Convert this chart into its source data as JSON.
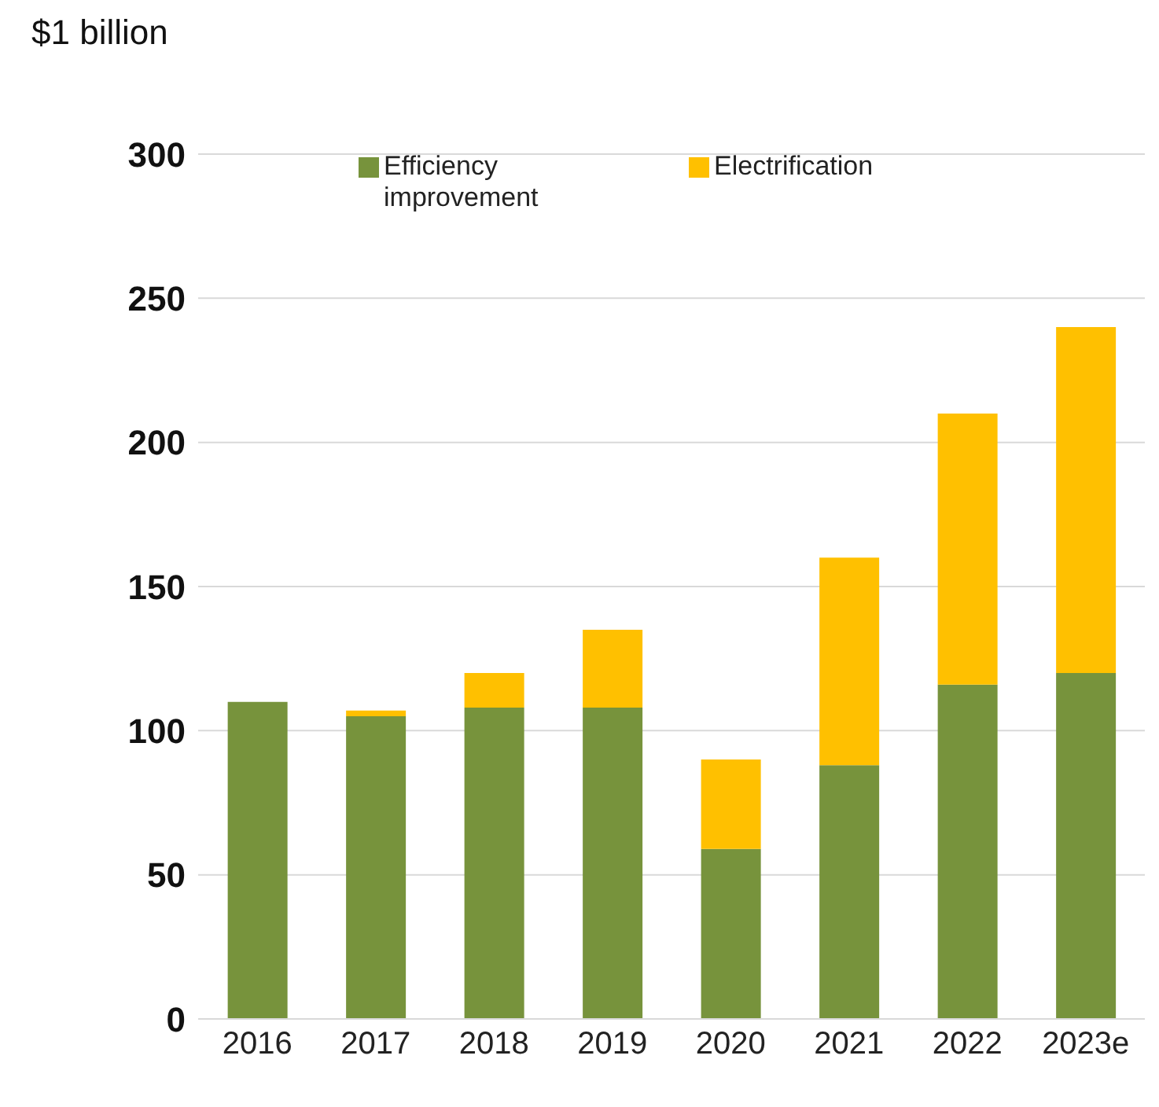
{
  "chart_data": {
    "type": "bar",
    "ylabel": "$1 billion",
    "stacked": true,
    "categories": [
      "2016",
      "2017",
      "2018",
      "2019",
      "2020",
      "2021",
      "2022",
      "2023e"
    ],
    "series": [
      {
        "name": "Efficiency improvement",
        "color": "#77933c",
        "values": [
          110,
          105,
          108,
          108,
          59,
          88,
          116,
          120
        ]
      },
      {
        "name": "Electrification",
        "color": "#ffc000",
        "values": [
          0,
          2,
          12,
          27,
          31,
          72,
          94,
          120
        ]
      }
    ],
    "ylim": [
      0,
      300
    ],
    "yticks": [
      0,
      50,
      100,
      150,
      200,
      250,
      300
    ],
    "grid": "y",
    "legend": "top"
  }
}
